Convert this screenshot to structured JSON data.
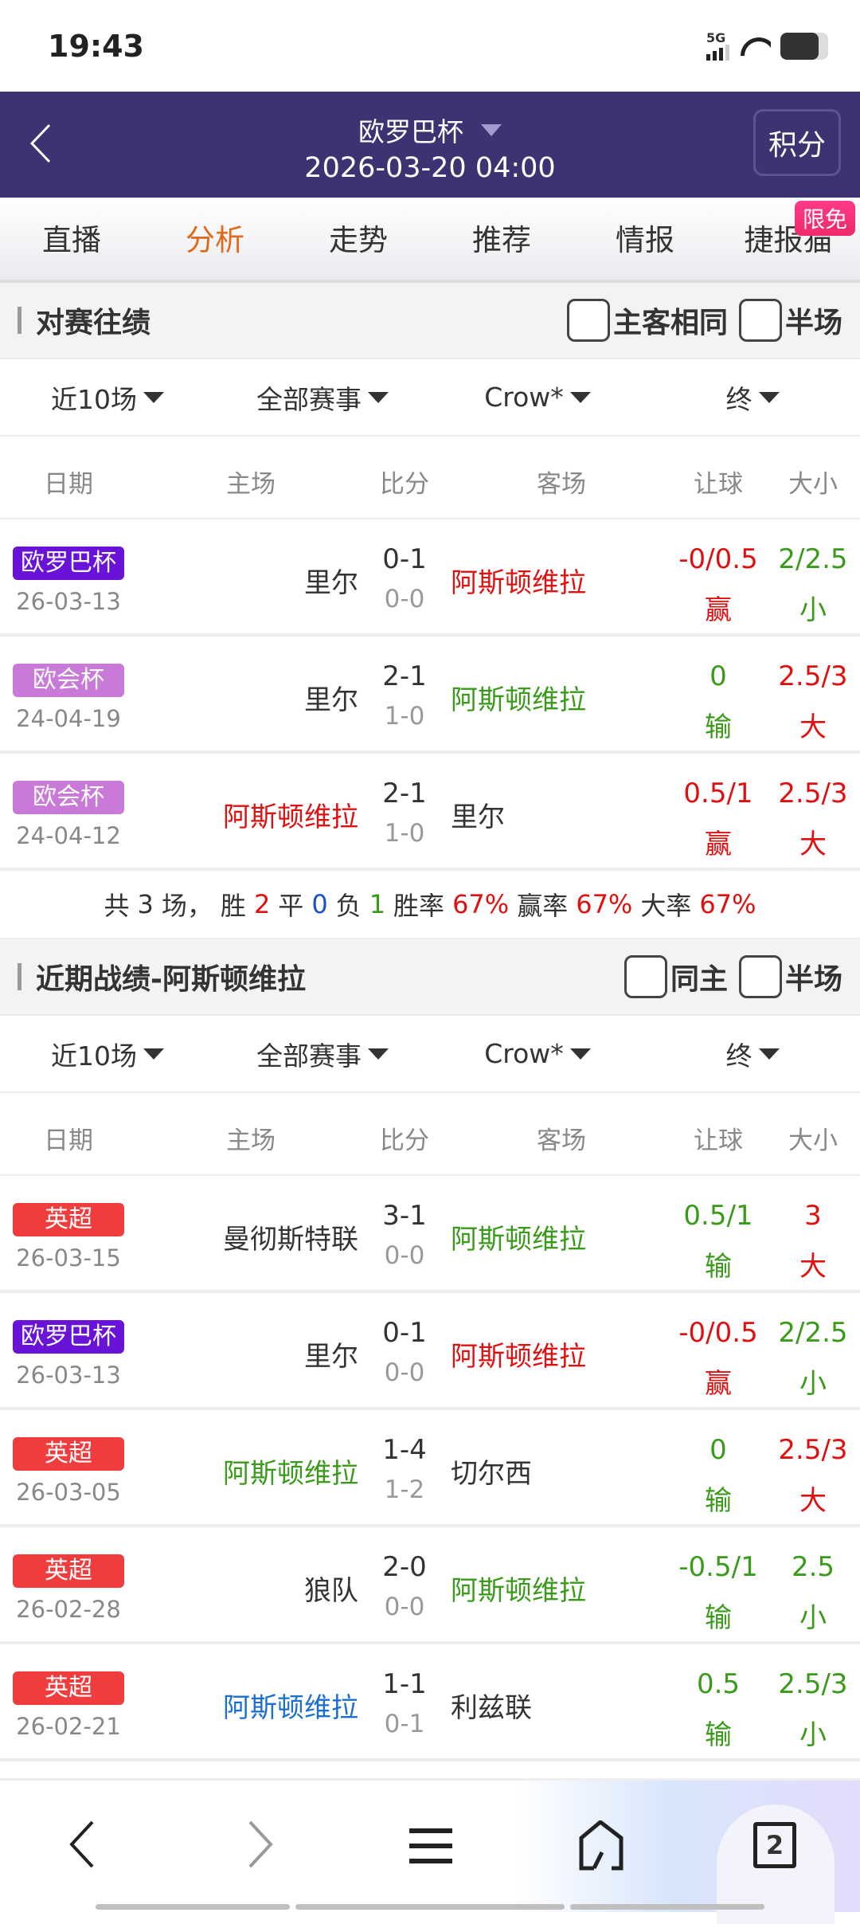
{
  "status": {
    "time": "19:43",
    "network": "5G",
    "icons": [
      "signal-icon",
      "wifi-icon",
      "battery-icon"
    ]
  },
  "header": {
    "title": "欧罗巴杯",
    "subtitle": "2026-03-20 04:00",
    "points_button": "积分",
    "bg": "#3d3373"
  },
  "tabs": [
    {
      "label": "直播"
    },
    {
      "label": "分析",
      "active": true
    },
    {
      "label": "走势"
    },
    {
      "label": "推荐"
    },
    {
      "label": "情报"
    },
    {
      "label": "捷报猫",
      "badge": "限免"
    }
  ],
  "h2h": {
    "title": "对赛往绩",
    "checks": [
      "主客相同",
      "半场"
    ],
    "filters": [
      "近10场",
      "全部赛事",
      "Crow*",
      "终"
    ],
    "columns": [
      "日期",
      "主场",
      "比分",
      "客场",
      "让球",
      "大小"
    ],
    "rows": [
      {
        "tag": "欧罗巴杯",
        "tag_color": "#6a13d8",
        "date": "26-03-13",
        "home": "里尔",
        "home_color": "#333333",
        "score": "0-1",
        "half": "0-0",
        "away": "阿斯顿维拉",
        "away_color": "#e01010",
        "hc": "-0/0.5",
        "hc_color": "#e01010",
        "hr": "赢",
        "hr_color": "#e01010",
        "ou": "2/2.5",
        "ou_color": "#3a9a1a",
        "or": "小",
        "or_color": "#3a9a1a"
      },
      {
        "tag": "欧会杯",
        "tag_color": "#c97ad9",
        "date": "24-04-19",
        "home": "里尔",
        "home_color": "#333333",
        "score": "2-1",
        "half": "1-0",
        "away": "阿斯顿维拉",
        "away_color": "#3a9a1a",
        "hc": "0",
        "hc_color": "#3a9a1a",
        "hr": "输",
        "hr_color": "#3a9a1a",
        "ou": "2.5/3",
        "ou_color": "#e01010",
        "or": "大",
        "or_color": "#e01010"
      },
      {
        "tag": "欧会杯",
        "tag_color": "#c97ad9",
        "date": "24-04-12",
        "home": "阿斯顿维拉",
        "home_color": "#e01010",
        "score": "2-1",
        "half": "1-0",
        "away": "里尔",
        "away_color": "#333333",
        "hc": "0.5/1",
        "hc_color": "#e01010",
        "hr": "赢",
        "hr_color": "#e01010",
        "ou": "2.5/3",
        "ou_color": "#e01010",
        "or": "大",
        "or_color": "#e01010"
      }
    ],
    "summary": {
      "total_prefix": "共",
      "total": "3",
      "total_suffix": "场，",
      "win_label": "胜",
      "win": "2",
      "draw_label": "平",
      "draw": "0",
      "loss_label": "负",
      "loss": "1",
      "winrate_label": "胜率",
      "winrate": "67%",
      "hcrate_label": "赢率",
      "hcrate": "67%",
      "overrate_label": "大率",
      "overrate": "67%"
    }
  },
  "recent": {
    "title": "近期战绩-阿斯顿维拉",
    "checks": [
      "同主",
      "半场"
    ],
    "filters": [
      "近10场",
      "全部赛事",
      "Crow*",
      "终"
    ],
    "columns": [
      "日期",
      "主场",
      "比分",
      "客场",
      "让球",
      "大小"
    ],
    "rows": [
      {
        "tag": "英超",
        "tag_color": "#f03c3c",
        "date": "26-03-15",
        "home": "曼彻斯特联",
        "home_color": "#333333",
        "score": "3-1",
        "half": "0-0",
        "away": "阿斯顿维拉",
        "away_color": "#3a9a1a",
        "hc": "0.5/1",
        "hc_color": "#3a9a1a",
        "hr": "输",
        "hr_color": "#3a9a1a",
        "ou": "3",
        "ou_color": "#e01010",
        "or": "大",
        "or_color": "#e01010"
      },
      {
        "tag": "欧罗巴杯",
        "tag_color": "#6a13d8",
        "date": "26-03-13",
        "home": "里尔",
        "home_color": "#333333",
        "score": "0-1",
        "half": "0-0",
        "away": "阿斯顿维拉",
        "away_color": "#e01010",
        "hc": "-0/0.5",
        "hc_color": "#e01010",
        "hr": "赢",
        "hr_color": "#e01010",
        "ou": "2/2.5",
        "ou_color": "#3a9a1a",
        "or": "小",
        "or_color": "#3a9a1a"
      },
      {
        "tag": "英超",
        "tag_color": "#f03c3c",
        "date": "26-03-05",
        "home": "阿斯顿维拉",
        "home_color": "#3a9a1a",
        "score": "1-4",
        "half": "1-2",
        "away": "切尔西",
        "away_color": "#333333",
        "hc": "0",
        "hc_color": "#3a9a1a",
        "hr": "输",
        "hr_color": "#3a9a1a",
        "ou": "2.5/3",
        "ou_color": "#e01010",
        "or": "大",
        "or_color": "#e01010"
      },
      {
        "tag": "英超",
        "tag_color": "#f03c3c",
        "date": "26-02-28",
        "home": "狼队",
        "home_color": "#333333",
        "score": "2-0",
        "half": "0-0",
        "away": "阿斯顿维拉",
        "away_color": "#3a9a1a",
        "hc": "-0.5/1",
        "hc_color": "#3a9a1a",
        "hr": "输",
        "hr_color": "#3a9a1a",
        "ou": "2.5",
        "ou_color": "#3a9a1a",
        "or": "小",
        "or_color": "#3a9a1a"
      },
      {
        "tag": "英超",
        "tag_color": "#f03c3c",
        "date": "26-02-21",
        "home": "阿斯顿维拉",
        "home_color": "#1a6fd0",
        "score": "1-1",
        "half": "0-1",
        "away": "利兹联",
        "away_color": "#333333",
        "hc": "0.5",
        "hc_color": "#3a9a1a",
        "hr": "输",
        "hr_color": "#3a9a1a",
        "ou": "2.5/3",
        "ou_color": "#3a9a1a",
        "or": "小",
        "or_color": "#3a9a1a"
      }
    ]
  },
  "bottom_nav": {
    "tab_count": "2",
    "icons": [
      "back-icon",
      "forward-icon",
      "menu-icon",
      "home-icon",
      "tabs-icon"
    ]
  }
}
